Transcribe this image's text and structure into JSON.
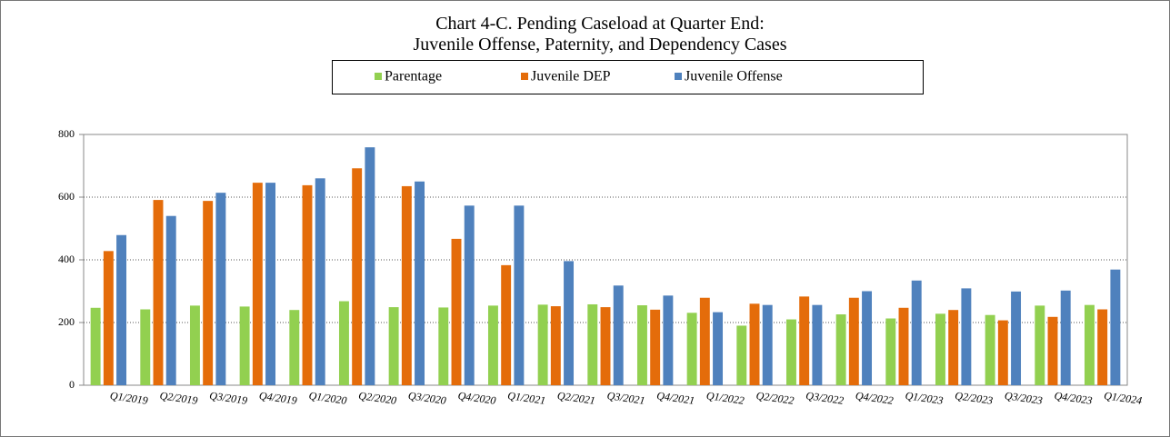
{
  "chart_data": {
    "type": "bar",
    "title": [
      "Chart 4-C. Pending Caseload at Quarter End:",
      "Juvenile Offense, Paternity, and Dependency Cases"
    ],
    "categories": [
      "Q1/2019",
      "Q2/2019",
      "Q3/2019",
      "Q4/2019",
      "Q1/2020",
      "Q2/2020",
      "Q3/2020",
      "Q4/2020",
      "Q1/2021",
      "Q2/2021",
      "Q3/2021",
      "Q4/2021",
      "Q1/2022",
      "Q2/2022",
      "Q3/2022",
      "Q4/2022",
      "Q1/2023",
      "Q2/2023",
      "Q3/2023",
      "Q4/2023",
      "Q1/2024"
    ],
    "series": [
      {
        "name": "Parentage",
        "color": "#92d050",
        "values": [
          247,
          242,
          254,
          251,
          240,
          268,
          249,
          248,
          254,
          257,
          258,
          255,
          231,
          190,
          210,
          226,
          213,
          228,
          224,
          254,
          256
        ]
      },
      {
        "name": "Juvenile DEP",
        "color": "#e46c0a",
        "values": [
          428,
          591,
          588,
          646,
          638,
          692,
          635,
          467,
          383,
          252,
          249,
          241,
          279,
          260,
          283,
          279,
          247,
          240,
          207,
          218,
          242
        ]
      },
      {
        "name": "Juvenile Offense",
        "color": "#4f81bd",
        "values": [
          479,
          540,
          614,
          646,
          660,
          759,
          650,
          573,
          573,
          396,
          318,
          286,
          233,
          256,
          256,
          300,
          334,
          309,
          299,
          302,
          369
        ]
      }
    ],
    "ylim": [
      0,
      800
    ],
    "yticks": [
      0,
      200,
      400,
      600,
      800
    ],
    "grid": true,
    "legend": "top"
  }
}
